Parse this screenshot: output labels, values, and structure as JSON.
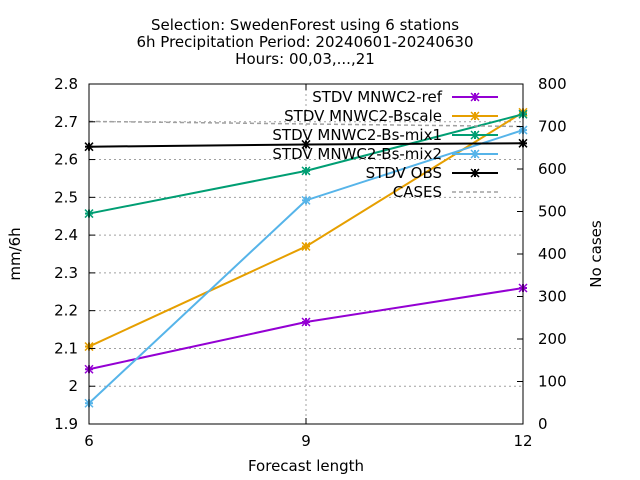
{
  "chart_data": {
    "type": "line",
    "title": [
      "Selection: SwedenForest using     6 stations",
      "6h Precipitation   Period: 20240601-20240630",
      "Hours: 00,03,...,21"
    ],
    "xlabel": "Forecast length",
    "ylabel": "mm/6h",
    "y2label": "No cases",
    "x": [
      6,
      9,
      12
    ],
    "xticks": [
      "6",
      "9",
      "12"
    ],
    "ylim": [
      1.9,
      2.8
    ],
    "yticks": [
      "1.9",
      "2",
      "2.1",
      "2.2",
      "2.3",
      "2.4",
      "2.5",
      "2.6",
      "2.7",
      "2.8"
    ],
    "y2lim": [
      0,
      800
    ],
    "y2ticks": [
      "0",
      "100",
      "200",
      "300",
      "400",
      "500",
      "600",
      "700",
      "800"
    ],
    "grid": true,
    "legend_position": "top-right",
    "series": [
      {
        "name": "STDV MNWC2-ref",
        "axis": "y",
        "color": "#9400d3",
        "style": "solid-marker",
        "values": [
          2.045,
          2.17,
          2.26
        ]
      },
      {
        "name": "STDV MNWC2-Bscale",
        "axis": "y",
        "color": "#e69f00",
        "style": "solid-marker",
        "values": [
          2.105,
          2.37,
          2.725
        ]
      },
      {
        "name": "STDV MNWC2-Bs-mix1",
        "axis": "y",
        "color": "#009e73",
        "style": "solid-marker",
        "values": [
          2.457,
          2.57,
          2.72
        ]
      },
      {
        "name": "STDV MNWC2-Bs-mix2",
        "axis": "y",
        "color": "#56b4e9",
        "style": "solid-marker",
        "values": [
          1.955,
          2.492,
          2.678
        ]
      },
      {
        "name": "STDV OBS",
        "axis": "y",
        "color": "#000000",
        "style": "solid-marker",
        "values": [
          2.634,
          2.64,
          2.643
        ]
      },
      {
        "name": "CASES",
        "axis": "y2",
        "color": "#a0a0a0",
        "style": "dashed",
        "values": [
          712,
          706,
          700
        ]
      }
    ]
  }
}
